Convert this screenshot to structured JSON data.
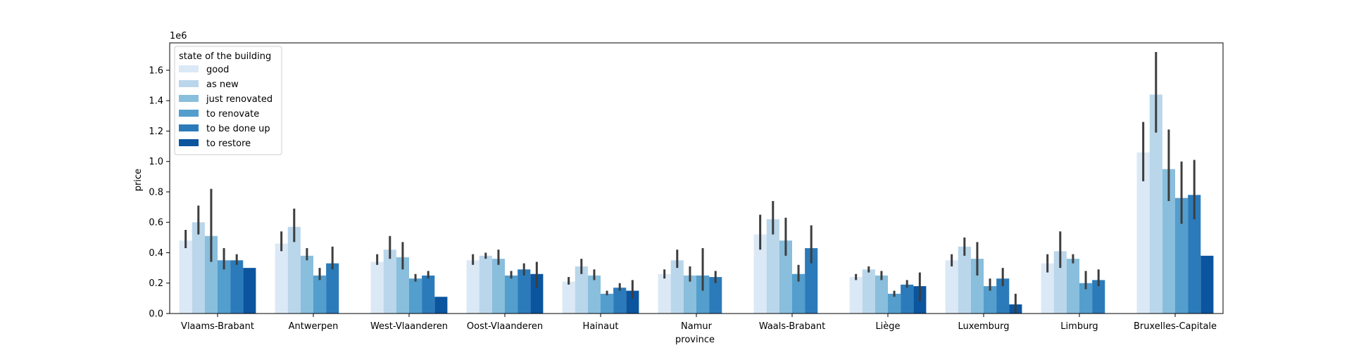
{
  "chart_data": {
    "type": "bar",
    "title": "",
    "xlabel": "province",
    "ylabel": "price",
    "y_multiplier_label": "1e6",
    "ylim": [
      0,
      1.78
    ],
    "yticks": [
      0.0,
      0.2,
      0.4,
      0.6,
      0.8,
      1.0,
      1.2,
      1.4,
      1.6
    ],
    "ytick_labels": [
      "0.0",
      "0.2",
      "0.4",
      "0.6",
      "0.8",
      "1.0",
      "1.2",
      "1.4",
      "1.6"
    ],
    "grid": false,
    "legend": {
      "title": "state of the building",
      "placement": "upper-left"
    },
    "categories": [
      "Vlaams-Brabant",
      "Antwerpen",
      "West-Vlaanderen",
      "Oost-Vlaanderen",
      "Hainaut",
      "Namur",
      "Waals-Brabant",
      "Liège",
      "Luxemburg",
      "Limburg",
      "Bruxelles-Capitale"
    ],
    "series": [
      {
        "name": "good",
        "color": "#dbe9f6",
        "values": [
          0.48,
          0.46,
          0.34,
          0.35,
          0.21,
          0.26,
          0.52,
          0.24,
          0.35,
          0.33,
          1.06
        ],
        "err_low": [
          0.43,
          0.41,
          0.32,
          0.32,
          0.19,
          0.23,
          0.42,
          0.22,
          0.31,
          0.27,
          0.87
        ],
        "err_high": [
          0.55,
          0.54,
          0.39,
          0.39,
          0.24,
          0.29,
          0.65,
          0.26,
          0.39,
          0.39,
          1.26
        ]
      },
      {
        "name": "as new",
        "color": "#bad6eb",
        "values": [
          0.6,
          0.57,
          0.42,
          0.38,
          0.31,
          0.35,
          0.62,
          0.29,
          0.44,
          0.41,
          1.44
        ],
        "err_low": [
          0.52,
          0.47,
          0.36,
          0.36,
          0.26,
          0.3,
          0.52,
          0.27,
          0.38,
          0.3,
          1.19
        ],
        "err_high": [
          0.71,
          0.69,
          0.51,
          0.4,
          0.36,
          0.42,
          0.74,
          0.31,
          0.5,
          0.54,
          1.72
        ]
      },
      {
        "name": "just renovated",
        "color": "#89bedc",
        "values": [
          0.51,
          0.38,
          0.37,
          0.36,
          0.25,
          0.25,
          0.48,
          0.25,
          0.36,
          0.36,
          0.95
        ],
        "err_low": [
          0.34,
          0.35,
          0.29,
          0.32,
          0.22,
          0.21,
          0.38,
          0.22,
          0.25,
          0.33,
          0.74
        ],
        "err_high": [
          0.82,
          0.43,
          0.47,
          0.42,
          0.29,
          0.31,
          0.63,
          0.28,
          0.47,
          0.39,
          1.21
        ]
      },
      {
        "name": "to renovate",
        "color": "#539ecd",
        "values": [
          0.35,
          0.25,
          0.23,
          0.25,
          0.13,
          0.25,
          0.26,
          0.13,
          0.18,
          0.2,
          0.76
        ],
        "err_low": [
          0.29,
          0.22,
          0.21,
          0.23,
          0.12,
          0.15,
          0.21,
          0.11,
          0.15,
          0.16,
          0.59
        ],
        "err_high": [
          0.43,
          0.3,
          0.26,
          0.28,
          0.15,
          0.43,
          0.32,
          0.15,
          0.23,
          0.28,
          1.0
        ]
      },
      {
        "name": "to be done up",
        "color": "#2b7bba",
        "values": [
          0.35,
          0.33,
          0.25,
          0.29,
          0.17,
          0.24,
          0.43,
          0.19,
          0.23,
          0.22,
          0.78
        ],
        "err_low": [
          0.32,
          0.29,
          0.23,
          0.25,
          0.15,
          0.2,
          0.33,
          0.17,
          0.18,
          0.18,
          0.62
        ],
        "err_high": [
          0.39,
          0.44,
          0.28,
          0.33,
          0.2,
          0.28,
          0.58,
          0.22,
          0.3,
          0.29,
          1.01
        ]
      },
      {
        "name": "to restore",
        "color": "#0b559f",
        "values": [
          0.3,
          null,
          0.11,
          0.26,
          0.15,
          null,
          null,
          0.18,
          0.06,
          null,
          0.38
        ],
        "err_low": [
          null,
          null,
          null,
          0.17,
          0.1,
          null,
          null,
          0.08,
          0.0,
          null,
          null
        ],
        "err_high": [
          null,
          null,
          null,
          0.34,
          0.22,
          null,
          null,
          0.27,
          0.13,
          null,
          null
        ]
      }
    ]
  }
}
